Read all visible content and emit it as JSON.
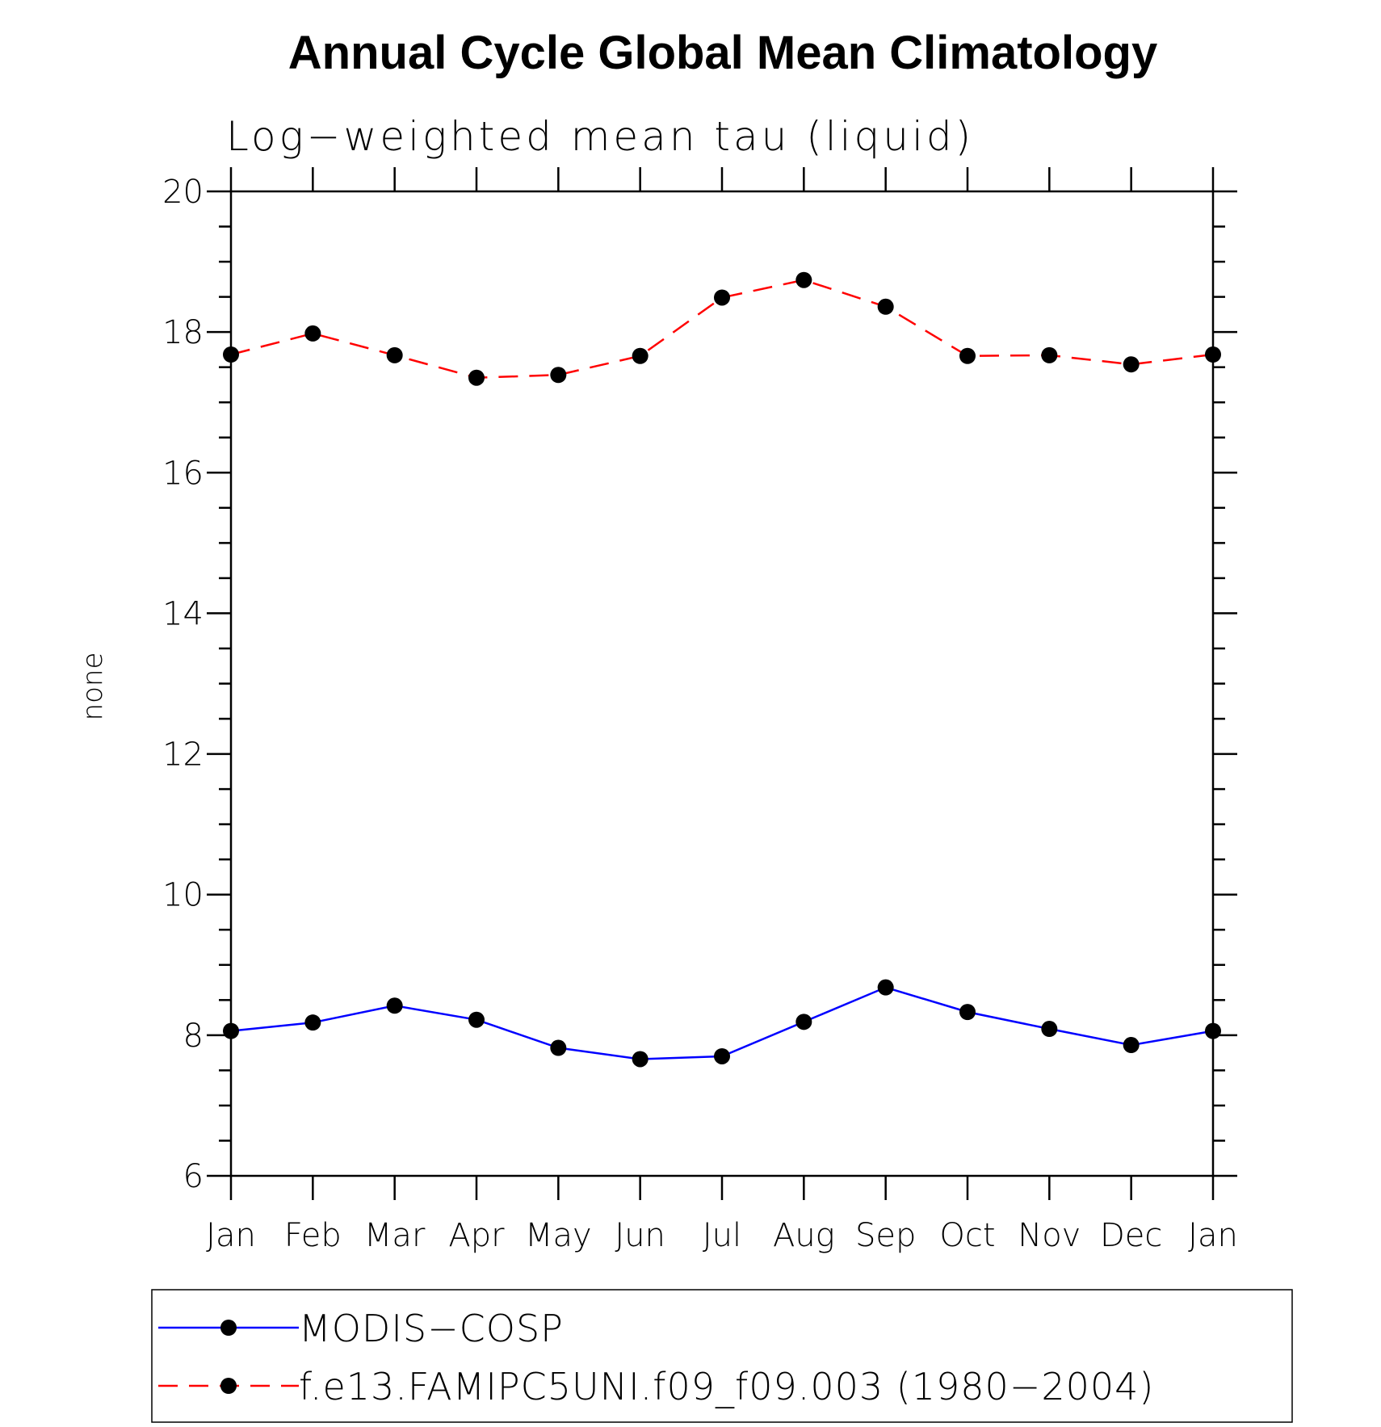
{
  "chart_data": {
    "type": "line",
    "title": "Annual Cycle Global Mean Climatology",
    "subtitle": "Log−weighted mean tau (liquid)",
    "ylabel": "none",
    "xlabel": "",
    "ylim": [
      6,
      20
    ],
    "yticks": [
      "6",
      "8",
      "10",
      "12",
      "14",
      "16",
      "18",
      "20"
    ],
    "categories": [
      "Jan",
      "Feb",
      "Mar",
      "Apr",
      "May",
      "Jun",
      "Jul",
      "Aug",
      "Sep",
      "Oct",
      "Nov",
      "Dec",
      "Jan"
    ],
    "series": [
      {
        "name": "MODIS−COSP",
        "color": "#0000ff",
        "dash": "solid",
        "values": [
          8.06,
          8.18,
          8.42,
          8.22,
          7.82,
          7.66,
          7.7,
          8.19,
          8.68,
          8.33,
          8.09,
          7.86,
          8.06
        ]
      },
      {
        "name": "f.e13.FAMIPC5UNI.f09_f09.003 (1980−2004)",
        "color": "#ff0000",
        "dash": "dashed",
        "values": [
          17.68,
          17.98,
          17.67,
          17.35,
          17.39,
          17.66,
          18.49,
          18.74,
          18.36,
          17.66,
          17.67,
          17.54,
          17.68
        ]
      }
    ],
    "legend_position": "bottom",
    "grid": false
  }
}
